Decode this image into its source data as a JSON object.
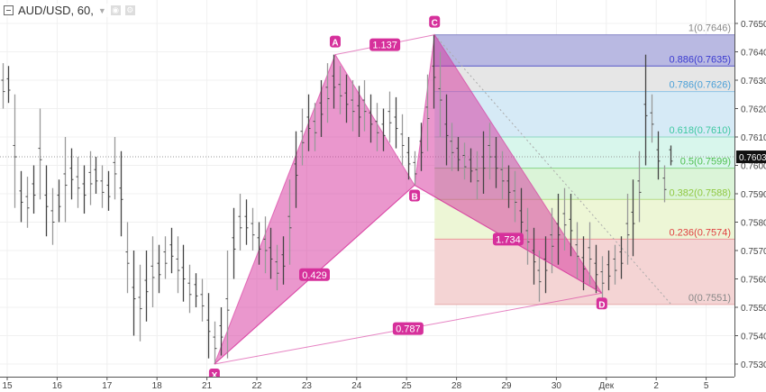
{
  "header": {
    "symbol": "AUD/USD, 60,",
    "dropdown_icon": "caret-down-icon",
    "eye_icon": "eye-icon",
    "settings_icon": "gear-icon"
  },
  "chart_data": {
    "type": "ohlc-bar",
    "symbol": "AUD/USD",
    "interval": "60",
    "ylim": [
      0.7523,
      0.7653
    ],
    "yticks": [
      "0.7530",
      "0.7540",
      "0.7550",
      "0.7560",
      "0.7570",
      "0.7580",
      "0.7590",
      "0.7600",
      "0.7610",
      "0.7620",
      "0.7630",
      "0.7640",
      "0.7650"
    ],
    "xticks": [
      "15",
      "16",
      "17",
      "18",
      "21",
      "22",
      "23",
      "24",
      "25",
      "28",
      "29",
      "30",
      "Дек",
      "2",
      "5"
    ],
    "grid": true,
    "last_price": "0.7603",
    "bars_high_low": [
      [
        0.7636,
        0.762
      ],
      [
        0.7635,
        0.7622
      ],
      [
        0.7625,
        0.7585
      ],
      [
        0.7598,
        0.758
      ],
      [
        0.7596,
        0.7578
      ],
      [
        0.76,
        0.7583
      ],
      [
        0.762,
        0.7588
      ],
      [
        0.76,
        0.7575
      ],
      [
        0.7592,
        0.7572
      ],
      [
        0.7595,
        0.758
      ],
      [
        0.761,
        0.758
      ],
      [
        0.7606,
        0.7588
      ],
      [
        0.7603,
        0.7585
      ],
      [
        0.76,
        0.7583
      ],
      [
        0.7605,
        0.7586
      ],
      [
        0.7603,
        0.759
      ],
      [
        0.76,
        0.7585
      ],
      [
        0.7598,
        0.7584
      ],
      [
        0.761,
        0.7588
      ],
      [
        0.7605,
        0.7575
      ],
      [
        0.758,
        0.7555
      ],
      [
        0.757,
        0.754
      ],
      [
        0.7565,
        0.7538
      ],
      [
        0.757,
        0.7545
      ],
      [
        0.7575,
        0.755
      ],
      [
        0.7572,
        0.7555
      ],
      [
        0.7575,
        0.756
      ],
      [
        0.7578,
        0.7562
      ],
      [
        0.7575,
        0.7555
      ],
      [
        0.7572,
        0.7552
      ],
      [
        0.7565,
        0.7548
      ],
      [
        0.7562,
        0.755
      ],
      [
        0.756,
        0.7545
      ],
      [
        0.7555,
        0.7532
      ],
      [
        0.7545,
        0.753
      ],
      [
        0.755,
        0.7533
      ],
      [
        0.757,
        0.7532
      ],
      [
        0.7585,
        0.756
      ],
      [
        0.759,
        0.757
      ],
      [
        0.7588,
        0.7572
      ],
      [
        0.7585,
        0.757
      ],
      [
        0.758,
        0.7565
      ],
      [
        0.7582,
        0.7562
      ],
      [
        0.7578,
        0.756
      ],
      [
        0.7572,
        0.7556
      ],
      [
        0.7575,
        0.7558
      ],
      [
        0.7595,
        0.7565
      ],
      [
        0.7612,
        0.7585
      ],
      [
        0.762,
        0.76
      ],
      [
        0.7625,
        0.7605
      ],
      [
        0.7622,
        0.7605
      ],
      [
        0.763,
        0.761
      ],
      [
        0.7636,
        0.7615
      ],
      [
        0.7639,
        0.762
      ],
      [
        0.7635,
        0.7618
      ],
      [
        0.7632,
        0.7615
      ],
      [
        0.763,
        0.7612
      ],
      [
        0.7628,
        0.761
      ],
      [
        0.763,
        0.7612
      ],
      [
        0.7625,
        0.7608
      ],
      [
        0.7622,
        0.7605
      ],
      [
        0.762,
        0.7605
      ],
      [
        0.7626,
        0.7608
      ],
      [
        0.7624,
        0.7606
      ],
      [
        0.7618,
        0.76
      ],
      [
        0.761,
        0.7595
      ],
      [
        0.7605,
        0.7593
      ],
      [
        0.7615,
        0.7598
      ],
      [
        0.7632,
        0.7605
      ],
      [
        0.7646,
        0.762
      ],
      [
        0.764,
        0.761
      ],
      [
        0.7625,
        0.76
      ],
      [
        0.7615,
        0.7598
      ],
      [
        0.761,
        0.7598
      ],
      [
        0.7608,
        0.7595
      ],
      [
        0.7606,
        0.7594
      ],
      [
        0.7605,
        0.7588
      ],
      [
        0.7612,
        0.759
      ],
      [
        0.7615,
        0.7595
      ],
      [
        0.761,
        0.7592
      ],
      [
        0.7605,
        0.7588
      ],
      [
        0.76,
        0.7585
      ],
      [
        0.7598,
        0.758
      ],
      [
        0.7592,
        0.7572
      ],
      [
        0.7585,
        0.7565
      ],
      [
        0.7578,
        0.7558
      ],
      [
        0.757,
        0.7552
      ],
      [
        0.7575,
        0.7555
      ],
      [
        0.7585,
        0.7562
      ],
      [
        0.759,
        0.7565
      ],
      [
        0.7592,
        0.757
      ],
      [
        0.759,
        0.7568
      ],
      [
        0.758,
        0.756
      ],
      [
        0.7575,
        0.7556
      ],
      [
        0.758,
        0.7558
      ],
      [
        0.7572,
        0.7555
      ],
      [
        0.7568,
        0.7553
      ],
      [
        0.757,
        0.7556
      ],
      [
        0.7572,
        0.7558
      ],
      [
        0.7575,
        0.756
      ],
      [
        0.759,
        0.7565
      ],
      [
        0.7595,
        0.7568
      ],
      [
        0.7605,
        0.758
      ],
      [
        0.7639,
        0.76
      ],
      [
        0.7625,
        0.7608
      ],
      [
        0.7612,
        0.7595
      ],
      [
        0.76,
        0.7587
      ],
      [
        0.7607,
        0.76
      ]
    ],
    "pattern": {
      "color": "#d6309b",
      "points": [
        {
          "label": "X",
          "x": 4.15,
          "price": 0.753
        },
        {
          "label": "A",
          "x": 6.57,
          "price": 0.7639
        },
        {
          "label": "B",
          "x": 8.16,
          "price": 0.7593
        },
        {
          "label": "C",
          "x": 8.56,
          "price": 0.7646
        },
        {
          "label": "D",
          "x": 11.91,
          "price": 0.7555
        }
      ],
      "ratios": [
        {
          "from": "X",
          "to": "B",
          "label": "0.429"
        },
        {
          "from": "A",
          "to": "C",
          "label": "1.137"
        },
        {
          "from": "B",
          "to": "D",
          "label": "1.734"
        },
        {
          "from": "X",
          "to": "D",
          "label": "0.787"
        }
      ]
    },
    "fib_retracement": {
      "start_x": 8.56,
      "trend_line": [
        [
          8.56,
          0.7646
        ],
        [
          13.3,
          0.7551
        ]
      ],
      "levels": [
        {
          "label": "1(0.7646)",
          "price": 0.7646,
          "line": "#8888c8",
          "fill": "#b9b9e2",
          "text": "#888888"
        },
        {
          "label": "0.886(0.7635)",
          "price": 0.7635,
          "line": "#5555c8",
          "fill": "#e6e6e6",
          "text": "#3a3ad0"
        },
        {
          "label": "0.786(0.7626)",
          "price": 0.7626,
          "line": "#8ec4e6",
          "fill": "#d6eaf6",
          "text": "#4aa0d8"
        },
        {
          "label": "0.618(0.7610)",
          "price": 0.761,
          "line": "#8ed8c4",
          "fill": "#d8f6ec",
          "text": "#3cc8a0"
        },
        {
          "label": "0.5(0.7599)",
          "price": 0.7599,
          "line": "#88d488",
          "fill": "#dbf4d8",
          "text": "#50c050"
        },
        {
          "label": "0.382(0.7588)",
          "price": 0.7588,
          "line": "#b8dc88",
          "fill": "#edf6d6",
          "text": "#90c840"
        },
        {
          "label": "0.236(0.7574)",
          "price": 0.7574,
          "line": "#ec9a9a",
          "fill": "#f4d4d4",
          "text": "#e04040"
        },
        {
          "label": "0(0.7551)",
          "price": 0.7551,
          "line": "#e4aaaa",
          "fill": null,
          "text": "#888888"
        }
      ]
    }
  }
}
